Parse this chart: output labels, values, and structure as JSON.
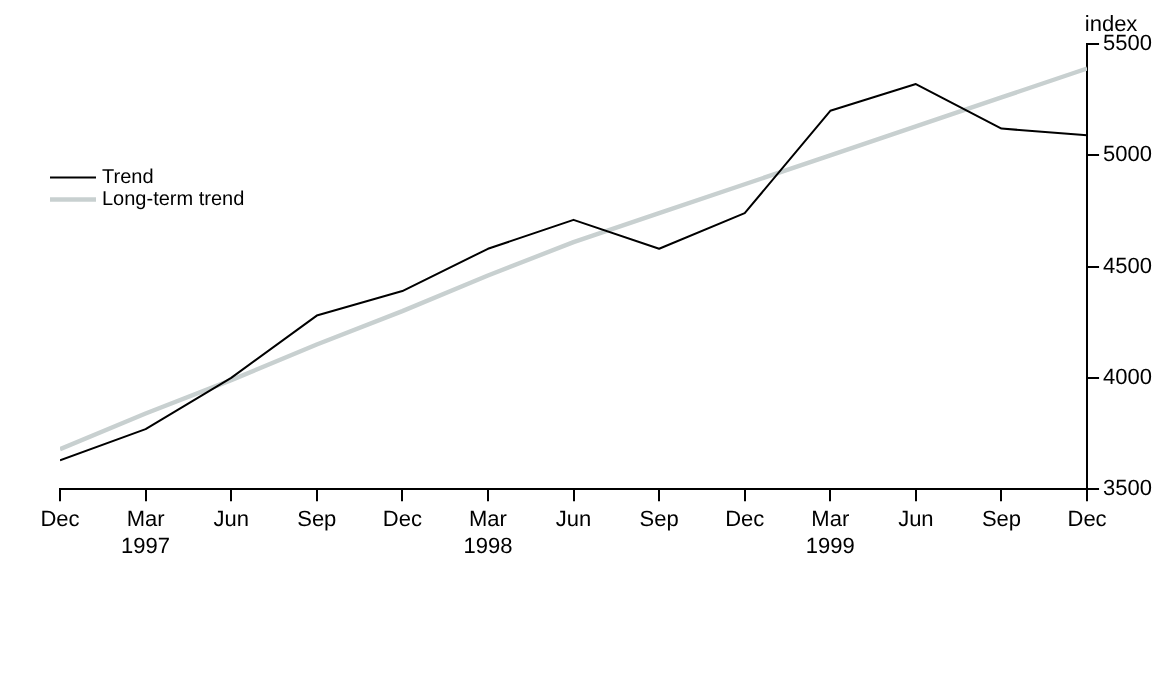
{
  "chart_data": {
    "type": "line",
    "ylabel": "index",
    "categories": [
      "Dec",
      "Mar\n1997",
      "Jun",
      "Sep",
      "Dec",
      "Mar\n1998",
      "Jun",
      "Sep",
      "Dec",
      "Mar\n1999",
      "Jun",
      "Sep",
      "Dec"
    ],
    "series": [
      {
        "name": "Trend",
        "color": "#000000",
        "values": [
          3630,
          3770,
          4000,
          4280,
          4390,
          4580,
          4710,
          4580,
          4740,
          5200,
          5320,
          5120,
          5090
        ]
      },
      {
        "name": "Long-term trend",
        "color": "#c8d0d0",
        "type": "line",
        "values": [
          3680,
          3840,
          3990,
          4150,
          4300,
          4460,
          4610,
          4740,
          4870,
          5000,
          5130,
          5260,
          5390
        ]
      }
    ],
    "ylim": [
      3500,
      5500
    ],
    "yticks": [
      3500,
      4000,
      4500,
      5000,
      5500
    ],
    "grid": false,
    "legend": "left",
    "marker": "none",
    "line_style": "solid"
  }
}
